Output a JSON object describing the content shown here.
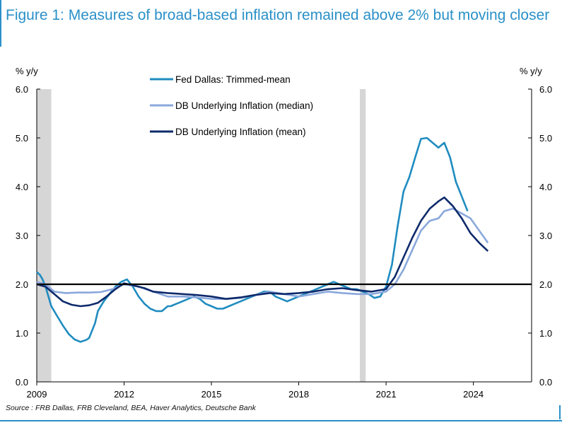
{
  "title": "Figure 1: Measures of broad-based inflation remained above 2% but moving closer",
  "source": "Source : FRB Dallas, FRB Cleveland, BEA, Haver Analytics, Deutsche Bank",
  "chart_data": {
    "type": "line",
    "left_axis_unit": "% y/y",
    "right_axis_unit": "% y/y",
    "ylim": [
      0,
      6
    ],
    "yticks": [
      "0.0",
      "1.0",
      "2.0",
      "3.0",
      "4.0",
      "5.0",
      "6.0"
    ],
    "xlim": [
      2009.0,
      2026.0
    ],
    "xticks": [
      "2009",
      "2012",
      "2015",
      "2018",
      "2021",
      "2024"
    ],
    "xtick_values": [
      2009,
      2012,
      2015,
      2018,
      2021,
      2024
    ],
    "reference_line": 2.0,
    "recession_shading": [
      [
        2009.0,
        2009.5
      ],
      [
        2020.1,
        2020.3
      ]
    ],
    "legend_position": "top-center",
    "series": [
      {
        "name": "Fed Dallas: Trimmed-mean",
        "color": "#1f8cc0",
        "x": [
          2009.0,
          2009.1,
          2009.2,
          2009.3,
          2009.4,
          2009.5,
          2009.7,
          2009.9,
          2010.1,
          2010.3,
          2010.5,
          2010.7,
          2010.8,
          2011.0,
          2011.1,
          2011.3,
          2011.5,
          2011.7,
          2011.9,
          2012.1,
          2012.3,
          2012.5,
          2012.7,
          2012.9,
          2013.1,
          2013.3,
          2013.5,
          2013.6,
          2013.8,
          2014.0,
          2014.2,
          2014.4,
          2014.6,
          2014.8,
          2015.0,
          2015.2,
          2015.4,
          2015.6,
          2015.8,
          2016.0,
          2016.2,
          2016.4,
          2016.6,
          2016.8,
          2017.0,
          2017.2,
          2017.4,
          2017.6,
          2017.8,
          2018.0,
          2018.2,
          2018.4,
          2018.6,
          2018.8,
          2019.0,
          2019.2,
          2019.4,
          2019.6,
          2019.8,
          2020.0,
          2020.2,
          2020.4,
          2020.6,
          2020.8,
          2021.0,
          2021.2,
          2021.4,
          2021.6,
          2021.8,
          2022.0,
          2022.2,
          2022.4,
          2022.6,
          2022.8,
          2023.0,
          2023.2,
          2023.4,
          2023.6,
          2023.8
        ],
        "values": [
          2.25,
          2.2,
          2.1,
          1.95,
          1.75,
          1.55,
          1.35,
          1.15,
          0.98,
          0.87,
          0.82,
          0.86,
          0.9,
          1.2,
          1.45,
          1.65,
          1.8,
          1.95,
          2.05,
          2.1,
          1.95,
          1.75,
          1.6,
          1.5,
          1.45,
          1.45,
          1.55,
          1.55,
          1.6,
          1.65,
          1.7,
          1.75,
          1.7,
          1.6,
          1.55,
          1.5,
          1.5,
          1.55,
          1.6,
          1.65,
          1.7,
          1.75,
          1.8,
          1.85,
          1.85,
          1.75,
          1.7,
          1.65,
          1.7,
          1.75,
          1.8,
          1.85,
          1.9,
          1.95,
          2.0,
          2.05,
          2.0,
          1.95,
          1.9,
          1.9,
          1.85,
          1.8,
          1.72,
          1.75,
          1.95,
          2.4,
          3.2,
          3.9,
          4.2,
          4.6,
          4.98,
          5.0,
          4.9,
          4.8,
          4.9,
          4.6,
          4.1,
          3.8,
          3.5
        ]
      },
      {
        "name": "DB Underlying Inflation (median)",
        "color": "#8aa8dc",
        "x": [
          2009.0,
          2009.3,
          2009.6,
          2010.0,
          2010.4,
          2010.8,
          2011.2,
          2011.6,
          2012.0,
          2012.5,
          2013.0,
          2013.5,
          2014.0,
          2014.5,
          2015.0,
          2015.5,
          2016.0,
          2016.5,
          2017.0,
          2017.5,
          2018.0,
          2018.5,
          2019.0,
          2019.5,
          2020.0,
          2020.5,
          2021.0,
          2021.3,
          2021.6,
          2021.9,
          2022.2,
          2022.5,
          2022.8,
          2023.0,
          2023.3,
          2023.6,
          2023.9,
          2024.2,
          2024.5
        ],
        "values": [
          2.05,
          2.0,
          1.85,
          1.82,
          1.83,
          1.83,
          1.84,
          1.9,
          2.0,
          1.95,
          1.85,
          1.75,
          1.75,
          1.73,
          1.7,
          1.7,
          1.72,
          1.78,
          1.85,
          1.8,
          1.75,
          1.8,
          1.85,
          1.82,
          1.8,
          1.8,
          1.85,
          2.0,
          2.3,
          2.7,
          3.1,
          3.3,
          3.35,
          3.5,
          3.55,
          3.45,
          3.35,
          3.1,
          2.85
        ]
      },
      {
        "name": "DB Underlying Inflation (mean)",
        "color": "#0e2a6b",
        "x": [
          2009.0,
          2009.3,
          2009.6,
          2009.9,
          2010.2,
          2010.5,
          2010.8,
          2011.1,
          2011.4,
          2011.7,
          2012.0,
          2012.3,
          2012.7,
          2013.0,
          2013.5,
          2014.0,
          2014.5,
          2015.0,
          2015.5,
          2016.0,
          2016.5,
          2017.0,
          2017.5,
          2018.0,
          2018.5,
          2019.0,
          2019.5,
          2020.0,
          2020.5,
          2021.0,
          2021.3,
          2021.6,
          2021.9,
          2022.2,
          2022.5,
          2022.8,
          2023.0,
          2023.3,
          2023.6,
          2023.9,
          2024.2,
          2024.5
        ],
        "values": [
          2.0,
          1.95,
          1.8,
          1.65,
          1.58,
          1.55,
          1.57,
          1.62,
          1.75,
          1.9,
          2.02,
          1.98,
          1.92,
          1.85,
          1.82,
          1.8,
          1.78,
          1.75,
          1.7,
          1.73,
          1.78,
          1.82,
          1.8,
          1.82,
          1.85,
          1.9,
          1.92,
          1.88,
          1.85,
          1.9,
          2.15,
          2.55,
          2.95,
          3.3,
          3.55,
          3.7,
          3.78,
          3.6,
          3.35,
          3.05,
          2.85,
          2.68
        ]
      }
    ]
  }
}
